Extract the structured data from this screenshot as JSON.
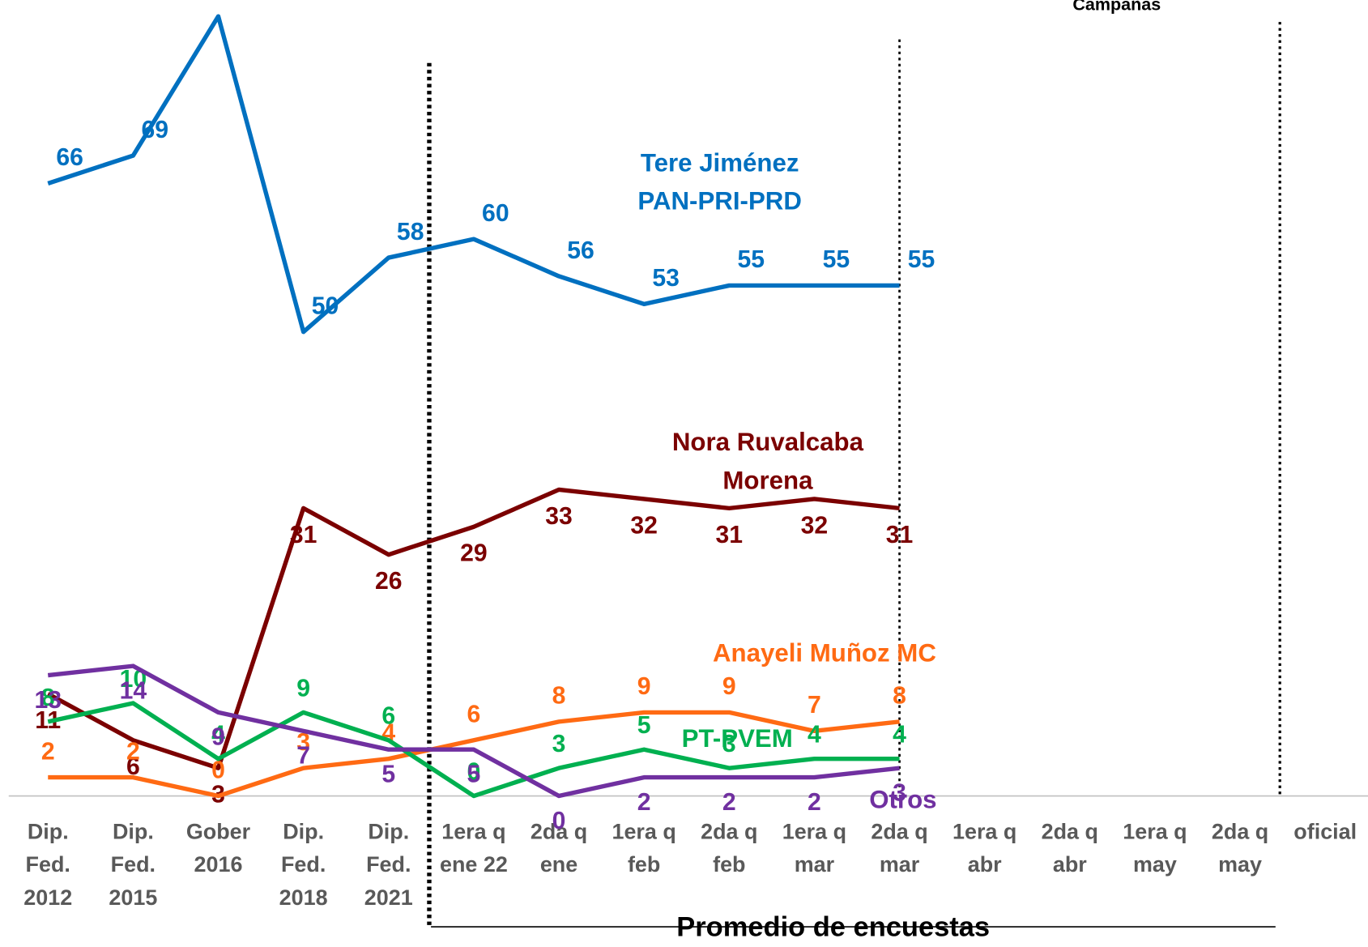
{
  "chart_data": {
    "type": "line",
    "annotation": "Campañas",
    "x_label": "Promedio de encuestas",
    "categories": [
      "Dip. Fed. 2012",
      "Dip. Fed. 2015",
      "Gober 2016",
      "Dip. Fed. 2018",
      "Dip. Fed. 2021",
      "1era q ene 22",
      "2da q ene",
      "1era q feb",
      "2da q feb",
      "1era q mar",
      "2da q mar",
      "1era q abr",
      "2da q abr",
      "1era q may",
      "2da q may",
      "oficial"
    ],
    "ylim": [
      0,
      85
    ],
    "series": [
      {
        "name": "Tere Jiménez PAN-PRI-PRD",
        "color": "#0070c0",
        "values": [
          66,
          69,
          84,
          50,
          58,
          60,
          56,
          53,
          55,
          55,
          55,
          null,
          null,
          null,
          null,
          null
        ]
      },
      {
        "name": "Nora Ruvalcaba Morena",
        "color": "#7b0000",
        "values": [
          11,
          6,
          3,
          31,
          26,
          29,
          33,
          32,
          31,
          32,
          31,
          null,
          null,
          null,
          null,
          null
        ]
      },
      {
        "name": "Anayeli Muñoz MC",
        "color": "#ff6a13",
        "values": [
          2,
          2,
          0,
          3,
          4,
          6,
          8,
          9,
          9,
          7,
          8,
          null,
          null,
          null,
          null,
          null
        ]
      },
      {
        "name": "PT-PVEM",
        "color": "#00b050",
        "values": [
          8,
          10,
          4,
          9,
          6,
          0,
          3,
          5,
          3,
          4,
          4,
          null,
          null,
          null,
          null,
          null
        ]
      },
      {
        "name": "Otros",
        "color": "#7030a0",
        "values": [
          13,
          14,
          9,
          7,
          5,
          5,
          0,
          2,
          2,
          2,
          3,
          null,
          null,
          null,
          null,
          null
        ]
      }
    ]
  }
}
